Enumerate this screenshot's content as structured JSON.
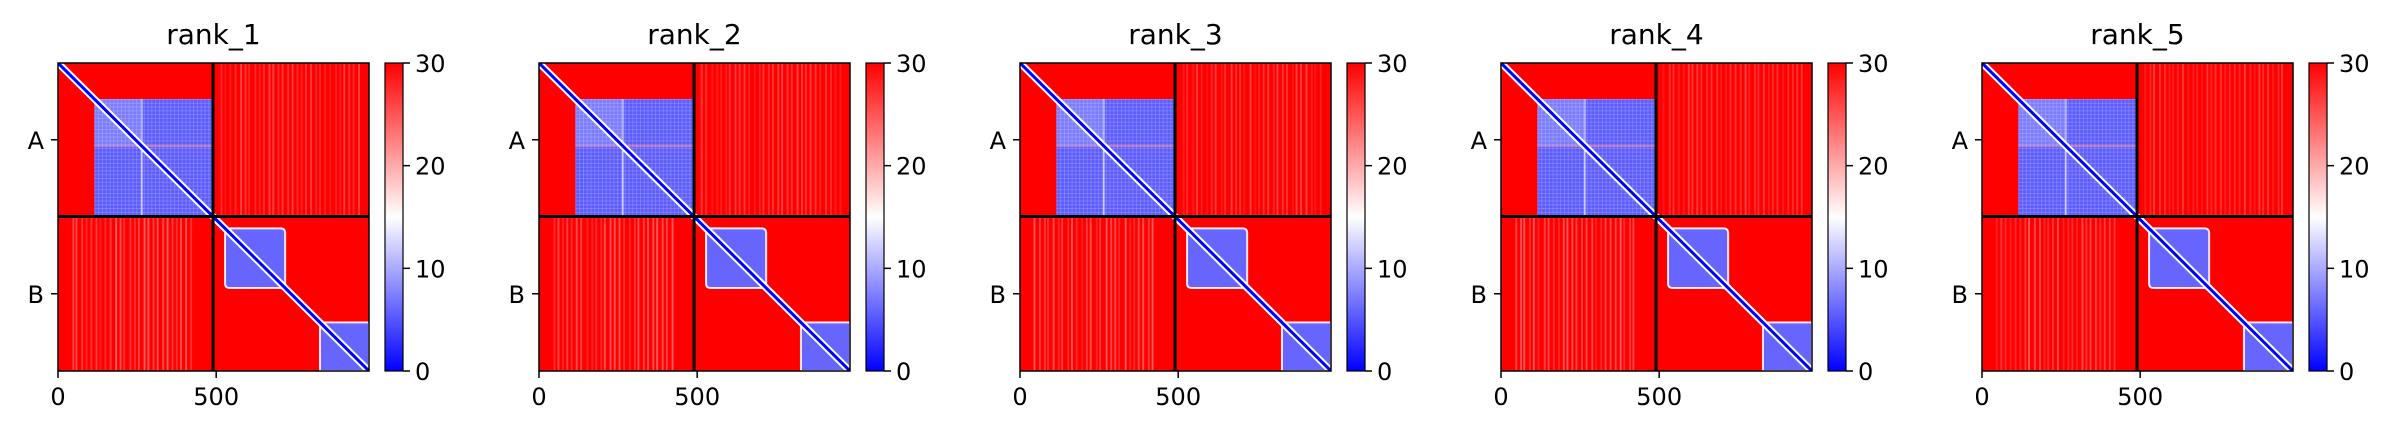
{
  "chart_data": {
    "type": "heatmap",
    "panels": [
      {
        "title": "rank_1",
        "variant": 0
      },
      {
        "title": "rank_2",
        "variant": 1
      },
      {
        "title": "rank_3",
        "variant": 2
      },
      {
        "title": "rank_4",
        "variant": 3
      },
      {
        "title": "rank_5",
        "variant": 4
      }
    ],
    "row_labels": [
      "A",
      "B"
    ],
    "x_ticks": [
      0,
      500
    ],
    "x_range": [
      0,
      983
    ],
    "chain_lengths": [
      490,
      493
    ],
    "colorbar": {
      "min": 0,
      "max": 30,
      "ticks": [
        0,
        10,
        20,
        30
      ],
      "colors": [
        "#0000ff",
        "#ffffff",
        "#ff0000"
      ]
    },
    "matrix_features": {
      "chain_A_domain": [
        115,
        490
      ],
      "chain_A_subdomain_split": 265,
      "chain_B_domain_1": [
        528,
        718
      ],
      "chain_B_domain_2": [
        828,
        983
      ]
    }
  }
}
